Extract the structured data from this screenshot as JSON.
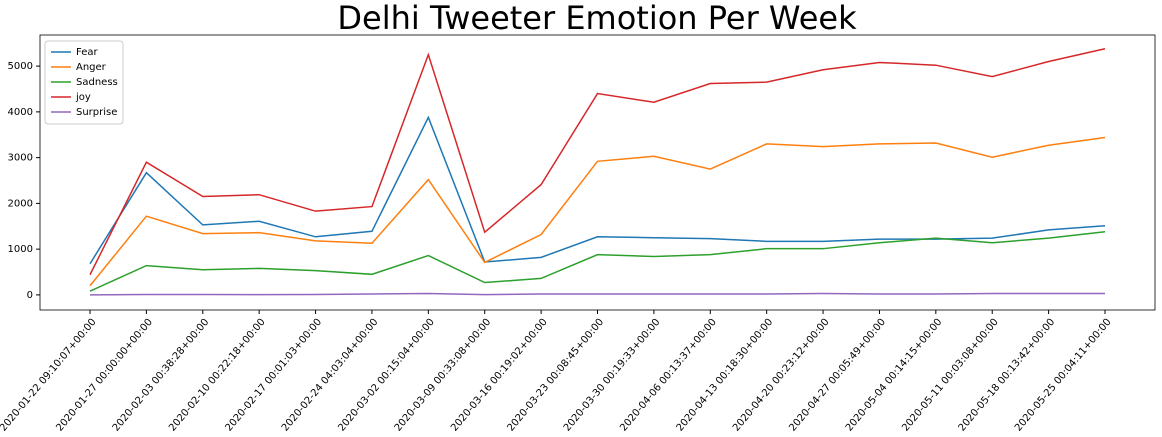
{
  "chart_data": {
    "type": "line",
    "title": "Delhi Tweeter Emotion Per Week",
    "categories": [
      "2020-01-22 09:10:07+00:00",
      "2020-01-27 00:00:00+00:00",
      "2020-02-03 00:38:28+00:00",
      "2020-02-10 00:22:18+00:00",
      "2020-02-17 00:01:03+00:00",
      "2020-02-24 04:03:04+00:00",
      "2020-03-02 00:15:04+00:00",
      "2020-03-09 00:33:08+00:00",
      "2020-03-16 00:19:02+00:00",
      "2020-03-23 00:08:45+00:00",
      "2020-03-30 00:19:33+00:00",
      "2020-04-06 00:13:37+00:00",
      "2020-04-13 00:18:30+00:00",
      "2020-04-20 00:23:12+00:00",
      "2020-04-27 00:05:49+00:00",
      "2020-05-04 00:14:15+00:00",
      "2020-05-11 00:03:08+00:00",
      "2020-05-18 00:13:42+00:00",
      "2020-05-25 00:04:11+00:00"
    ],
    "series": [
      {
        "name": "Fear",
        "color": "#1f77b4",
        "values": [
          680,
          2670,
          1530,
          1610,
          1270,
          1390,
          3880,
          720,
          820,
          1270,
          1250,
          1230,
          1170,
          1170,
          1220,
          1220,
          1240,
          1420,
          1510
        ]
      },
      {
        "name": "Anger",
        "color": "#ff7f0e",
        "values": [
          200,
          1720,
          1340,
          1360,
          1180,
          1130,
          2520,
          710,
          1320,
          2920,
          3030,
          2750,
          3300,
          3240,
          3300,
          3320,
          3010,
          3270,
          3440
        ]
      },
      {
        "name": "Sadness",
        "color": "#2ca02c",
        "values": [
          80,
          640,
          550,
          580,
          530,
          450,
          860,
          270,
          360,
          880,
          840,
          880,
          1010,
          1010,
          1140,
          1240,
          1140,
          1240,
          1380
        ]
      },
      {
        "name": "joy",
        "color": "#d62728",
        "values": [
          440,
          2900,
          2150,
          2190,
          1830,
          1930,
          5250,
          1370,
          2410,
          4400,
          4210,
          4620,
          4650,
          4920,
          5080,
          5020,
          4770,
          5100,
          5380
        ]
      },
      {
        "name": "Surprise",
        "color": "#9467bd",
        "values": [
          0,
          10,
          10,
          5,
          10,
          20,
          30,
          5,
          20,
          20,
          20,
          20,
          20,
          30,
          20,
          20,
          30,
          30,
          30
        ]
      }
    ],
    "ylim": [
      -330,
      5680
    ],
    "yticks": [
      0,
      1000,
      2000,
      3000,
      4000,
      5000
    ],
    "legend": "upper left",
    "grid": false
  }
}
